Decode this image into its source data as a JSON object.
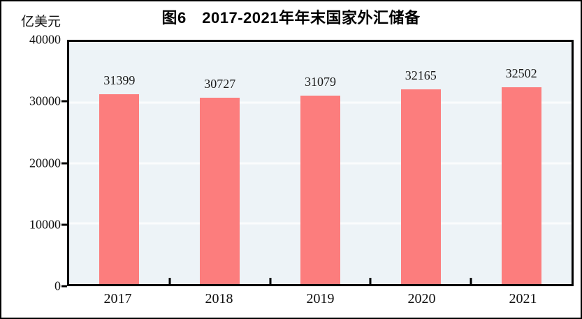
{
  "figure": {
    "title": "图6　2017-2021年年末国家外汇储备",
    "unit_label": "亿美元"
  },
  "chart_data": {
    "type": "bar",
    "title": "图6　2017-2021年年末国家外汇储备",
    "ylabel_unit": "亿美元",
    "categories": [
      "2017",
      "2018",
      "2019",
      "2020",
      "2021"
    ],
    "values": [
      31399,
      30727,
      31079,
      32165,
      32502
    ],
    "value_labels": [
      "31399",
      "30727",
      "31079",
      "32165",
      "32502"
    ],
    "ylim": [
      0,
      40000
    ],
    "yticks": [
      "0",
      "10000",
      "20000",
      "30000",
      "40000"
    ],
    "grid": "horizontal gridlines at 10000, 20000, 30000",
    "legend": "none",
    "colors": {
      "bar": "#FC7D7D",
      "plot_bg": "#EDF3F7",
      "gridline": "#FAFCFD",
      "axis": "#000000"
    }
  }
}
